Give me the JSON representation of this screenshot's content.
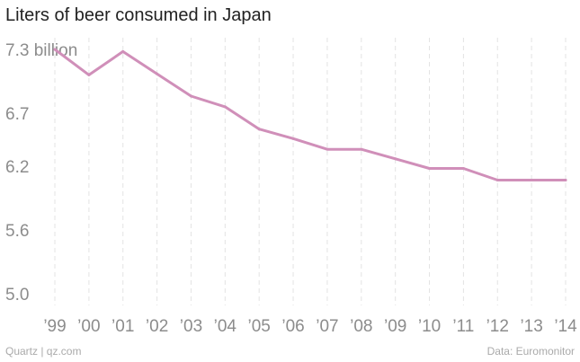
{
  "title": "Liters of beer consumed in Japan",
  "footer": {
    "source_left": "Quartz | qz.com",
    "source_right": "Data: Euromonitor"
  },
  "chart_data": {
    "type": "line",
    "title": "Liters of beer consumed in Japan",
    "xlabel": "",
    "ylabel": "",
    "x": [
      "’99",
      "’00",
      "’01",
      "’02",
      "’03",
      "’04",
      "’05",
      "’06",
      "’07",
      "’08",
      "’09",
      "’10",
      "’11",
      "’12",
      "’13",
      "’14"
    ],
    "series": [
      {
        "values": [
          7.3,
          7.06,
          7.28,
          7.07,
          6.86,
          6.76,
          6.55,
          6.46,
          6.36,
          6.36,
          6.27,
          6.18,
          6.18,
          6.07,
          6.07,
          6.07
        ]
      }
    ],
    "yticks": [
      5.0,
      5.6,
      6.2,
      6.7,
      7.3
    ],
    "ytick_labels": [
      "5.0",
      "5.6",
      "6.2",
      "6.7",
      "7.3 billion"
    ],
    "ylim": [
      5.0,
      7.3
    ],
    "grid": "vertical dashed",
    "legend": "none",
    "colors": {
      "line": "#d08fb9",
      "grid": "#e3e3e3",
      "axis_text": "#8c8c8c"
    }
  }
}
